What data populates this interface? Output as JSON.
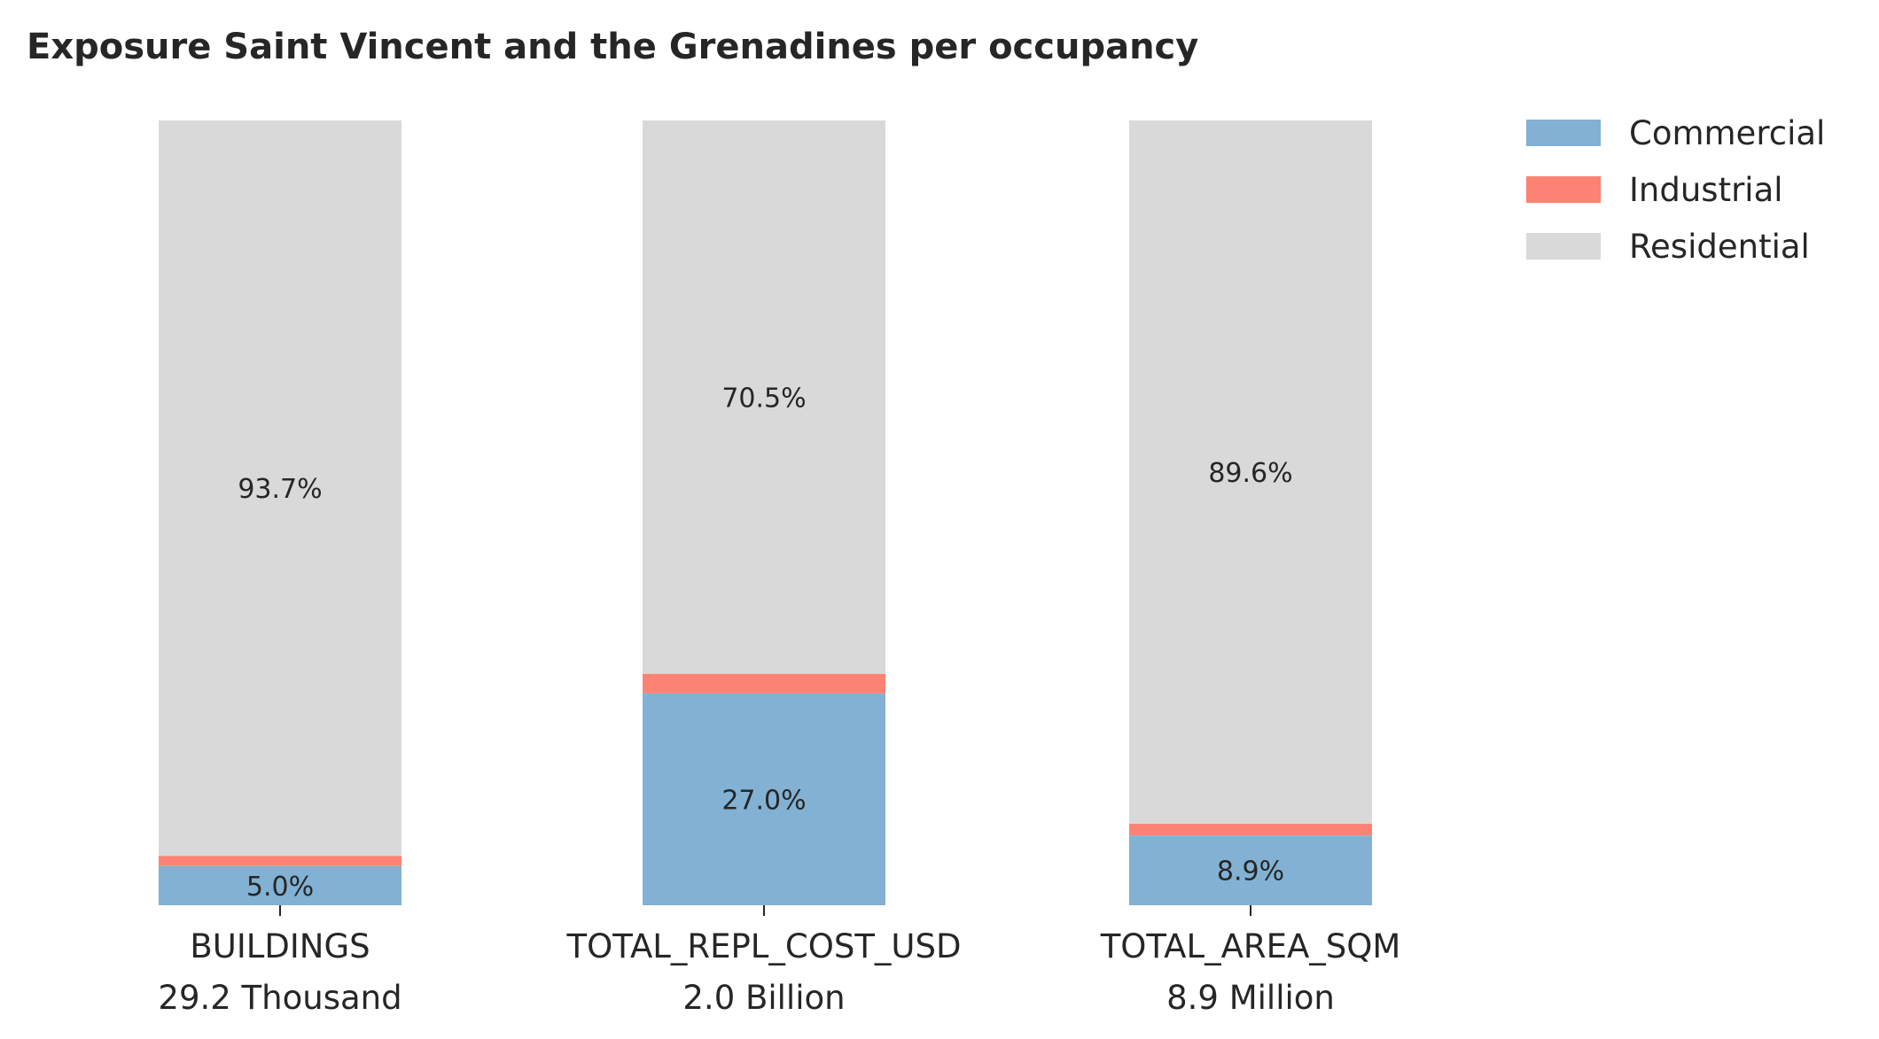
{
  "chart_data": {
    "type": "bar",
    "stacked": true,
    "normalized": true,
    "title": "Exposure Saint Vincent and the Grenadines per occupancy",
    "xlabel": "",
    "ylabel": "",
    "ylim": [
      0,
      100
    ],
    "grid": false,
    "legend_position": "top-right",
    "categories": [
      {
        "name": "BUILDINGS",
        "total": "29.2 Thousand"
      },
      {
        "name": "TOTAL_REPL_COST_USD",
        "total": "2.0 Billion"
      },
      {
        "name": "TOTAL_AREA_SQM",
        "total": "8.9 Million"
      }
    ],
    "series": [
      {
        "name": "Commercial",
        "color": "#82b1d3",
        "values": [
          5.0,
          27.0,
          8.9
        ],
        "labels": [
          "5.0%",
          "27.0%",
          "8.9%"
        ]
      },
      {
        "name": "Industrial",
        "color": "#fc8374",
        "values": [
          1.3,
          2.5,
          1.5
        ],
        "labels": [
          "",
          "",
          ""
        ]
      },
      {
        "name": "Residential",
        "color": "#d9d9d9",
        "values": [
          93.7,
          70.5,
          89.6
        ],
        "labels": [
          "93.7%",
          "70.5%",
          "89.6%"
        ]
      }
    ]
  }
}
